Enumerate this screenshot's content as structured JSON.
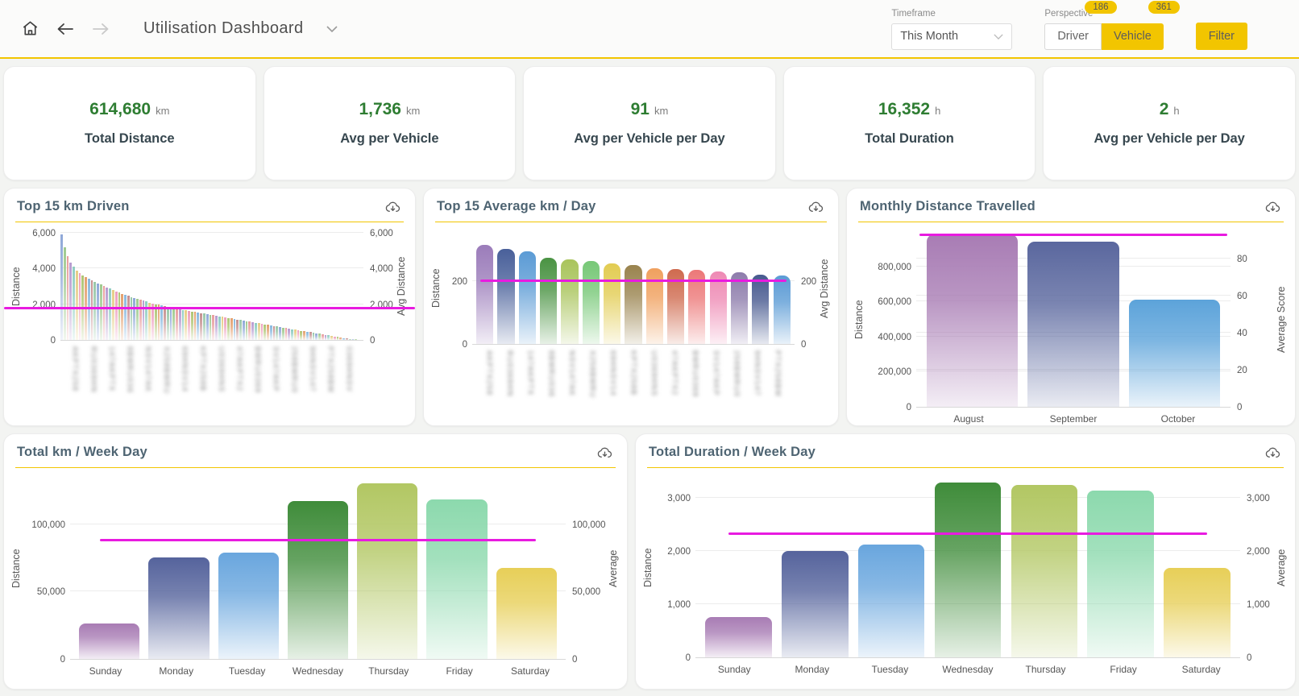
{
  "header": {
    "title": "Utilisation Dashboard",
    "timeframe": {
      "label": "Timeframe",
      "value": "This Month"
    },
    "perspective": {
      "label": "Perspective",
      "options": [
        {
          "label": "Driver",
          "badge": "186",
          "selected": false
        },
        {
          "label": "Vehicle",
          "badge": "361",
          "selected": true
        }
      ]
    },
    "filter_label": "Filter"
  },
  "kpis": [
    {
      "value": "614,680",
      "unit": "km",
      "label": "Total Distance"
    },
    {
      "value": "1,736",
      "unit": "km",
      "label": "Avg per Vehicle"
    },
    {
      "value": "91",
      "unit": "km",
      "label": "Avg per Vehicle per Day"
    },
    {
      "value": "16,352",
      "unit": "h",
      "label": "Total Duration"
    },
    {
      "value": "2",
      "unit": "h",
      "label": "Avg per Vehicle per Day"
    }
  ],
  "colors": {
    "accent_yellow": "#f2c500",
    "kpi_green": "#2e7d32",
    "avg_line_magenta": "#e81be0"
  },
  "chart_data": {
    "top15km": {
      "type": "bar",
      "title": "Top 15 km Driven",
      "ylabel_left": "Distance",
      "ylabel_right": "Avg Distance",
      "ylim": [
        0,
        6100
      ],
      "yticks": [
        {
          "v": 0,
          "label": "0"
        },
        {
          "v": 2000,
          "label": "2,000"
        },
        {
          "v": 4000,
          "label": "4,000"
        },
        {
          "v": 6000,
          "label": "6,000"
        }
      ],
      "average_line": {
        "value": 1800,
        "axis": "left"
      },
      "x_labels_redacted": 16,
      "palette": [
        "#8fa8d8",
        "#9fca8f",
        "#e89d9d",
        "#b79bd0",
        "#8fcdc2",
        "#e6cd85",
        "#ed9fbe",
        "#aec573",
        "#e3a06f",
        "#89b8de",
        "#c48f8f",
        "#98c7a8"
      ],
      "values": [
        5900,
        5200,
        4700,
        4350,
        4100,
        3900,
        3750,
        3620,
        3520,
        3430,
        3340,
        3260,
        3180,
        3100,
        3020,
        2940,
        2870,
        2800,
        2730,
        2660,
        2590,
        2530,
        2470,
        2410,
        2350,
        2300,
        2250,
        2200,
        2150,
        2100,
        2050,
        2010,
        1970,
        1930,
        1890,
        1850,
        1810,
        1780,
        1750,
        1720,
        1690,
        1660,
        1630,
        1600,
        1570,
        1540,
        1510,
        1480,
        1450,
        1420,
        1390,
        1360,
        1330,
        1300,
        1270,
        1240,
        1210,
        1180,
        1150,
        1120,
        1090,
        1060,
        1030,
        1000,
        970,
        940,
        910,
        880,
        850,
        820,
        790,
        760,
        730,
        700,
        670,
        640,
        610,
        580,
        550,
        520,
        490,
        460,
        430,
        400,
        370,
        340,
        310,
        280,
        250,
        220,
        190,
        160,
        130,
        100,
        75,
        55,
        40,
        25,
        12,
        5
      ]
    },
    "top15avg": {
      "type": "bar",
      "title": "Top 15 Average km / Day",
      "ylabel_left": "Distance",
      "ylabel_right": "Avg Distance",
      "ylim": [
        0,
        360
      ],
      "yticks": [
        {
          "v": 0,
          "label": "0"
        },
        {
          "v": 200,
          "label": "200"
        }
      ],
      "average_line": {
        "value": 203,
        "axis": "left"
      },
      "x_labels_redacted": 15,
      "colors": [
        "#9b7cba",
        "#49609a",
        "#5b9bd5",
        "#4a9343",
        "#a9c45c",
        "#77c877",
        "#e2cc52",
        "#99834e",
        "#f0a05e",
        "#cf6a4e",
        "#ec7878",
        "#ee8ab4",
        "#8d7cab",
        "#47598f",
        "#5b9bd5"
      ],
      "values": [
        317,
        303,
        296,
        275,
        270,
        266,
        256,
        252,
        243,
        240,
        236,
        232,
        229,
        222,
        218
      ]
    },
    "monthly": {
      "type": "bar",
      "title": "Monthly Distance Travelled",
      "ylabel_left": "Distance",
      "ylabel_right": "Average Score",
      "ylim": [
        0,
        1000000
      ],
      "yticks": [
        {
          "v": 0,
          "label": "0"
        },
        {
          "v": 200000,
          "label": "200,000"
        },
        {
          "v": 400000,
          "label": "400,000"
        },
        {
          "v": 600000,
          "label": "600,000"
        },
        {
          "v": 800000,
          "label": "800,000"
        }
      ],
      "right_ylim": [
        0,
        95
      ],
      "right_yticks": [
        {
          "v": 0,
          "label": "0"
        },
        {
          "v": 20,
          "label": "20"
        },
        {
          "v": 40,
          "label": "40"
        },
        {
          "v": 60,
          "label": "60"
        },
        {
          "v": 80,
          "label": "80"
        }
      ],
      "average_line": {
        "value": 93,
        "axis": "right"
      },
      "categories": [
        "August",
        "September",
        "October"
      ],
      "colors": [
        "#a87cb4",
        "#5a679e",
        "#5ca3da"
      ],
      "values": [
        980000,
        940000,
        610000
      ]
    },
    "weekday_km": {
      "type": "bar",
      "title": "Total km / Week Day",
      "ylabel_left": "Distance",
      "ylabel_right": "Average",
      "ylim": [
        0,
        135000
      ],
      "yticks": [
        {
          "v": 0,
          "label": "0"
        },
        {
          "v": 50000,
          "label": "50,000"
        },
        {
          "v": 100000,
          "label": "100,000"
        }
      ],
      "average_line": {
        "value": 88000,
        "axis": "left"
      },
      "categories": [
        "Sunday",
        "Monday",
        "Tuesday",
        "Wednesday",
        "Thursday",
        "Friday",
        "Saturday"
      ],
      "colors": [
        "#a87cb4",
        "#55639c",
        "#69a6de",
        "#3f8c3a",
        "#b2c763",
        "#8cd9ad",
        "#e7cf58"
      ],
      "values": [
        26500,
        75000,
        79000,
        117000,
        130000,
        118000,
        67500
      ]
    },
    "weekday_duration": {
      "type": "bar",
      "title": "Total Duration / Week Day",
      "ylabel_left": "Distance",
      "ylabel_right": "Average",
      "ylim": [
        0,
        3400
      ],
      "yticks": [
        {
          "v": 0,
          "label": "0"
        },
        {
          "v": 1000,
          "label": "1,000"
        },
        {
          "v": 2000,
          "label": "2,000"
        },
        {
          "v": 3000,
          "label": "3,000"
        }
      ],
      "average_line": {
        "value": 2330,
        "axis": "left"
      },
      "categories": [
        "Sunday",
        "Monday",
        "Tuesday",
        "Wednesday",
        "Thursday",
        "Friday",
        "Saturday"
      ],
      "colors": [
        "#a87cb4",
        "#55639c",
        "#69a6de",
        "#3f8c3a",
        "#b2c763",
        "#8cd9ad",
        "#e7cf58"
      ],
      "values": [
        760,
        2010,
        2130,
        3300,
        3250,
        3140,
        1690
      ]
    }
  }
}
